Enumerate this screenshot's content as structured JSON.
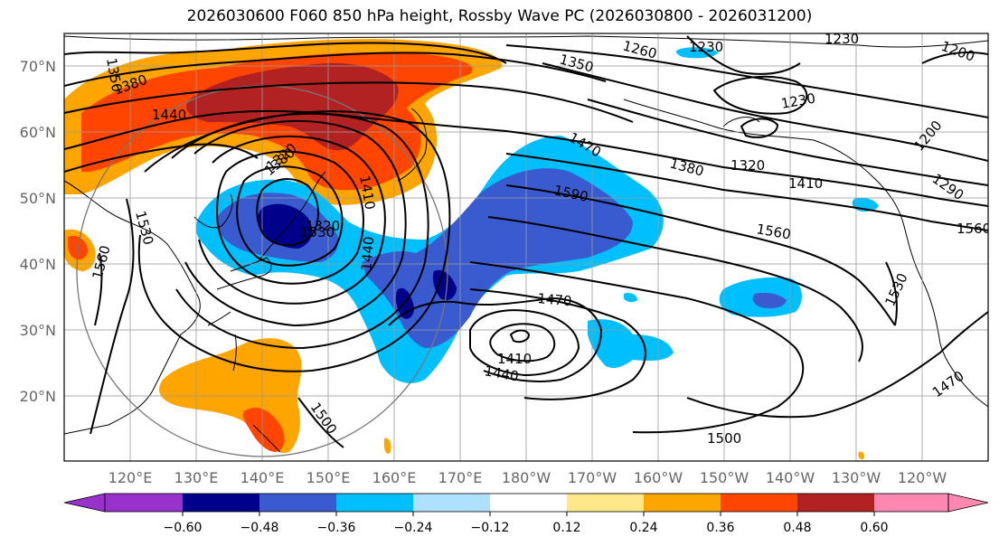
{
  "title": "2026030600 F060 850 hPa height, Rossby Wave PC (2026030800 - 2026031200)",
  "lat_ticks": [
    "70°N",
    "60°N",
    "50°N",
    "40°N",
    "30°N",
    "20°N"
  ],
  "lon_ticks": [
    "120°E",
    "130°E",
    "140°E",
    "150°E",
    "160°E",
    "170°E",
    "180°W",
    "170°W",
    "160°W",
    "150°W",
    "140°W",
    "130°W",
    "120°W"
  ],
  "colorbar": {
    "ticks": [
      "−0.60",
      "−0.48",
      "−0.36",
      "−0.24",
      "−0.12",
      "0.12",
      "0.24",
      "0.36",
      "0.48",
      "0.60"
    ],
    "colors": [
      "#9932cc",
      "#00008b",
      "#3a5bd0",
      "#00bfff",
      "#b0e0ff",
      "#ffffff",
      "#ffe88a",
      "#ffa500",
      "#ff4500",
      "#b22222",
      "#ff88b0"
    ]
  },
  "contour_labels": [
    "1350",
    "1380",
    "1440",
    "1260",
    "1230",
    "1350",
    "1230",
    "1200",
    "1230",
    "1470",
    "1380",
    "1320",
    "1590",
    "1410",
    "1290",
    "1200",
    "1560",
    "1530",
    "1560",
    "1530",
    "1440",
    "1320",
    "1320",
    "1380",
    "1410",
    "1470",
    "1410",
    "1440",
    "1500",
    "1500",
    "1470",
    "1530",
    "1560"
  ]
}
